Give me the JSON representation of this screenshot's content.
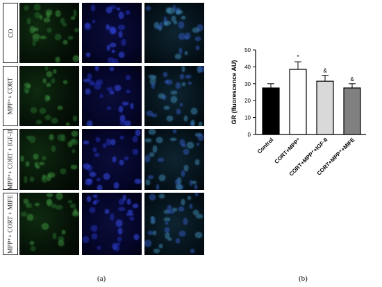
{
  "panel_a": {
    "label": "(a)",
    "rows": [
      {
        "label": "CO"
      },
      {
        "label": "MPP⁺+ CORT"
      },
      {
        "label": "MPP⁺+ CORT + IGF-II"
      },
      {
        "label": "MPP⁺+ CORT + MIFE"
      }
    ],
    "colors": {
      "green_channel": "#1d5a22",
      "blue_channel": "#1f2aa8",
      "merge_channel": "#2a6a8a"
    }
  },
  "panel_b": {
    "label": "(b)"
  },
  "chart_data": {
    "type": "bar",
    "ylabel": "GR (fluorescence AU)",
    "ylim": [
      0,
      50
    ],
    "yticks": [
      0,
      10,
      20,
      30,
      40,
      50
    ],
    "categories": [
      "Control",
      "CORT+MPP⁺",
      "CORT+MPP⁺+IGF-II",
      "CORT+MPP⁺+MIFE"
    ],
    "values": [
      27.5,
      38.5,
      31.5,
      27.5
    ],
    "errors": [
      2.5,
      4.5,
      3.5,
      2.5
    ],
    "annotations": [
      "",
      "*",
      "&",
      "&"
    ],
    "bar_colors": [
      "#000000",
      "#ffffff",
      "#d9d9d9",
      "#808080"
    ],
    "grid": false,
    "legend": "none"
  }
}
